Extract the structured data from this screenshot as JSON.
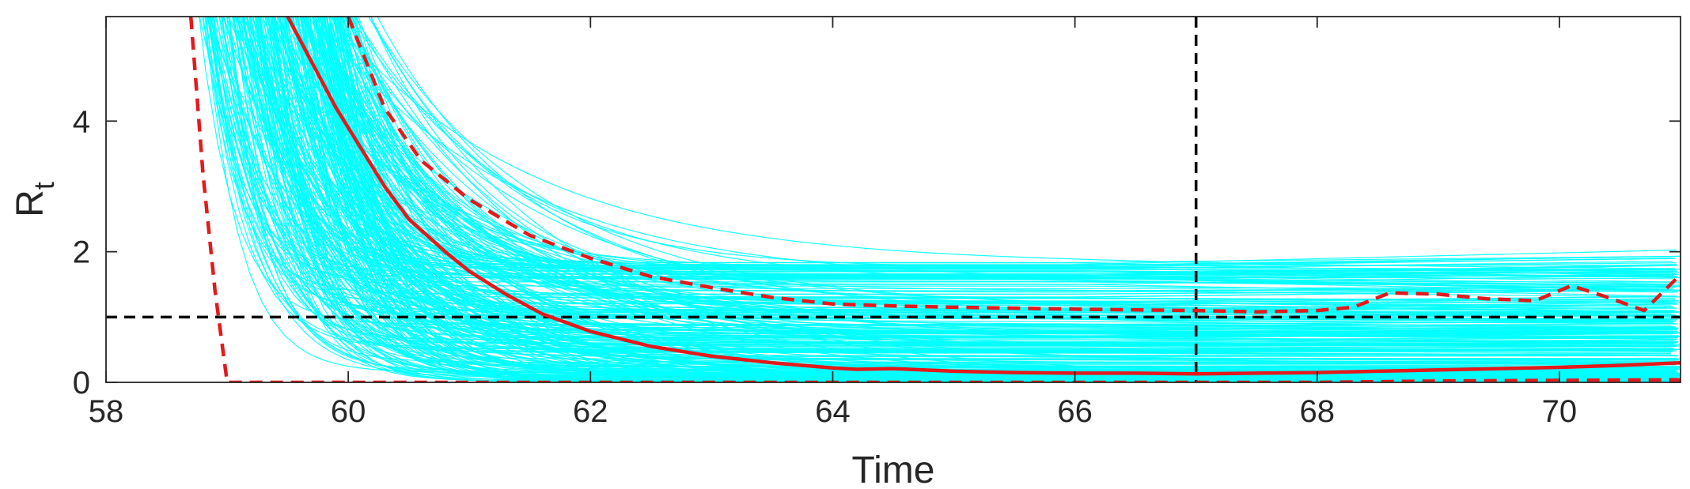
{
  "chart_data": {
    "type": "line",
    "title": "",
    "xlabel": "Time",
    "ylabel": "R",
    "ylabel_subscript": "t",
    "xlim": [
      58,
      71
    ],
    "ylim": [
      0,
      5.6
    ],
    "xticks": [
      58,
      60,
      62,
      64,
      66,
      68,
      70
    ],
    "yticks": [
      0,
      2,
      4
    ],
    "xtick_labels": [
      "58",
      "60",
      "62",
      "64",
      "66",
      "68",
      "70"
    ],
    "ytick_labels": [
      "0",
      "2",
      "4"
    ],
    "grid": false,
    "legend": null,
    "colors": {
      "samples": "#00ffff",
      "summary": "#e31a1c",
      "reference": "#000000",
      "axes": "#262626"
    },
    "reference_lines": [
      {
        "orientation": "horizontal",
        "y": 1,
        "style": "dashed"
      },
      {
        "orientation": "vertical",
        "x": 67,
        "style": "dashed"
      }
    ],
    "sample_trajectories": {
      "count": 300,
      "model": "exponential decay to a plateau",
      "onset_x_range": [
        58.7,
        59.9
      ],
      "plateau_range": [
        0,
        1.85
      ],
      "decay_rate_range": [
        0.6,
        3.5
      ]
    },
    "series": [
      {
        "role": "median",
        "style": "solid",
        "x": [
          59.5,
          59.7,
          59.9,
          60.1,
          60.3,
          60.5,
          60.8,
          61.0,
          61.3,
          61.6,
          62.0,
          62.5,
          63.0,
          63.5,
          64.0,
          64.2,
          64.5,
          65.0,
          65.5,
          66.0,
          66.5,
          67.0,
          67.5,
          68.0,
          68.5,
          69.0,
          69.5,
          70.0,
          70.5,
          71.0
        ],
        "y": [
          5.6,
          4.9,
          4.2,
          3.6,
          3.0,
          2.5,
          2.0,
          1.7,
          1.35,
          1.05,
          0.78,
          0.55,
          0.4,
          0.3,
          0.22,
          0.2,
          0.21,
          0.17,
          0.15,
          0.14,
          0.14,
          0.13,
          0.14,
          0.15,
          0.17,
          0.19,
          0.21,
          0.23,
          0.26,
          0.3
        ]
      },
      {
        "role": "upper bound",
        "style": "dashed",
        "x": [
          60.0,
          60.3,
          60.6,
          61.0,
          61.5,
          62.0,
          62.5,
          63.0,
          63.5,
          64.0,
          64.5,
          65.0,
          66.0,
          67.0,
          67.5,
          68.0,
          68.3,
          68.6,
          69.0,
          69.4,
          69.8,
          70.1,
          70.4,
          70.7,
          71.0
        ],
        "y": [
          5.6,
          4.2,
          3.4,
          2.8,
          2.25,
          1.9,
          1.62,
          1.45,
          1.3,
          1.2,
          1.17,
          1.15,
          1.12,
          1.1,
          1.08,
          1.1,
          1.15,
          1.37,
          1.35,
          1.28,
          1.25,
          1.48,
          1.3,
          1.1,
          1.65
        ]
      },
      {
        "role": "lower bound",
        "style": "dashed",
        "x": [
          58.7,
          58.8,
          58.9,
          59.0,
          59.5,
          62.0,
          64.0,
          66.0,
          67.0,
          68.0,
          69.0,
          70.0,
          71.0
        ],
        "y": [
          5.6,
          3.2,
          1.4,
          0.0,
          0.0,
          0.0,
          0.0,
          0.0,
          0.0,
          0.0,
          0.02,
          0.03,
          0.04
        ]
      }
    ]
  }
}
